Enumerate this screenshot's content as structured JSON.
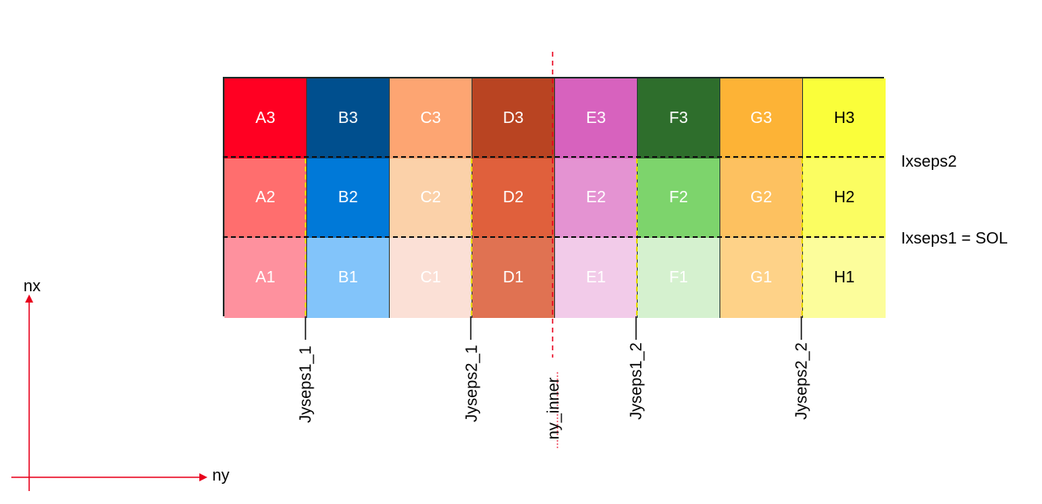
{
  "grid": {
    "rows": [
      [
        {
          "label": "A3",
          "bg": "#ff0022",
          "fg": "#ffffff"
        },
        {
          "label": "B3",
          "bg": "#004f8e",
          "fg": "#ffffff"
        },
        {
          "label": "C3",
          "bg": "#fda572",
          "fg": "#ffffff"
        },
        {
          "label": "D3",
          "bg": "#b94422",
          "fg": "#ffffff"
        },
        {
          "label": "E3",
          "bg": "#d762be",
          "fg": "#ffffff"
        },
        {
          "label": "F3",
          "bg": "#2e6e2c",
          "fg": "#ffffff"
        },
        {
          "label": "G3",
          "bg": "#fdb336",
          "fg": "#ffffff"
        },
        {
          "label": "H3",
          "bg": "#fafe3a",
          "fg": "#000000"
        }
      ],
      [
        {
          "label": "A2",
          "bg": "#ff6e6e",
          "fg": "#ffffff"
        },
        {
          "label": "B2",
          "bg": "#0079d8",
          "fg": "#ffffff"
        },
        {
          "label": "C2",
          "bg": "#fbd1a9",
          "fg": "#ffffff"
        },
        {
          "label": "D2",
          "bg": "#e0603c",
          "fg": "#ffffff"
        },
        {
          "label": "E2",
          "bg": "#e493d2",
          "fg": "#ffffff"
        },
        {
          "label": "F2",
          "bg": "#7dd46c",
          "fg": "#ffffff"
        },
        {
          "label": "G2",
          "bg": "#fdc160",
          "fg": "#ffffff"
        },
        {
          "label": "H2",
          "bg": "#fbfd61",
          "fg": "#000000"
        }
      ],
      [
        {
          "label": "A1",
          "bg": "#fe919e",
          "fg": "#ffffff"
        },
        {
          "label": "B1",
          "bg": "#82c4fa",
          "fg": "#ffffff"
        },
        {
          "label": "C1",
          "bg": "#fbe0d6",
          "fg": "#ffffff"
        },
        {
          "label": "D1",
          "bg": "#e07252",
          "fg": "#ffffff"
        },
        {
          "label": "E1",
          "bg": "#f2cbe9",
          "fg": "#ffffff"
        },
        {
          "label": "F1",
          "bg": "#d5f1cf",
          "fg": "#ffffff"
        },
        {
          "label": "G1",
          "bg": "#fed288",
          "fg": "#ffffff"
        },
        {
          "label": "H1",
          "bg": "#fcfd9b",
          "fg": "#000000"
        }
      ]
    ]
  },
  "x_separators": {
    "ixseps2": "Ixseps2",
    "ixseps1": "Ixseps1 = SOL"
  },
  "y_separators": {
    "jyseps1_1": "Jyseps1_1",
    "jyseps2_1": "Jyseps2_1",
    "ny_inner": "ny_inner",
    "jyseps1_2": "Jyseps1_2",
    "jyseps2_2": "Jyseps2_2"
  },
  "axes": {
    "x_label": "ny",
    "y_label": "nx",
    "color": "#e8001c"
  },
  "colors": {
    "ny_inner_line": "#e8001c",
    "jyseps_line": "#e6d800",
    "ixseps_line": "#111111"
  }
}
